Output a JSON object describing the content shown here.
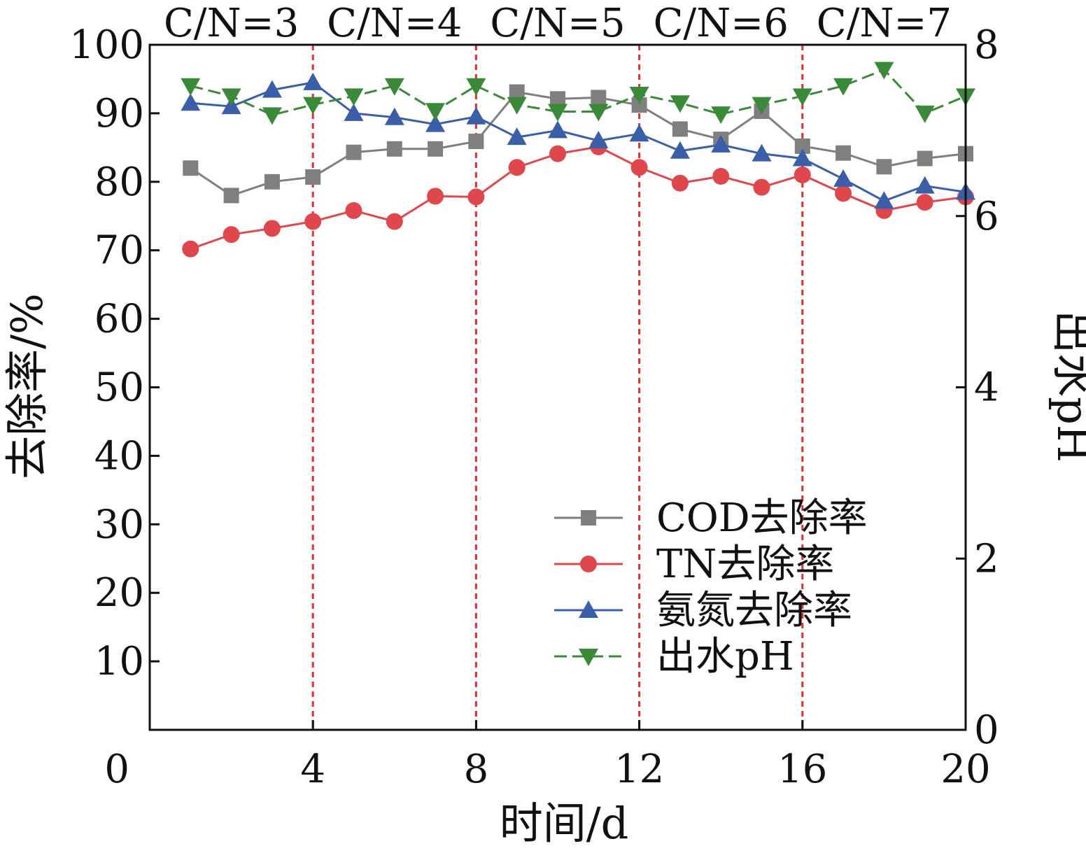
{
  "chart_data": {
    "type": "line",
    "xlabel": "时间/d",
    "ylabel": "去除率/%",
    "y2label": "出水pH",
    "xlim": [
      0,
      20
    ],
    "ylim": [
      0,
      100
    ],
    "y2lim": [
      0,
      8
    ],
    "xticks": [
      "0",
      "4",
      "8",
      "12",
      "16",
      "20"
    ],
    "yticks": [
      "10",
      "20",
      "30",
      "40",
      "50",
      "60",
      "70",
      "80",
      "90",
      "100"
    ],
    "y2ticks": [
      "0",
      "2",
      "4",
      "6",
      "8"
    ],
    "phase_boundaries": [
      4,
      8,
      12,
      16
    ],
    "phase_labels": [
      "C/N=3",
      "C/N=4",
      "C/N=5",
      "C/N=6",
      "C/N=7"
    ],
    "legend_position": "lower-right",
    "x": [
      1,
      2,
      3,
      4,
      5,
      6,
      7,
      8,
      9,
      10,
      11,
      12,
      13,
      14,
      15,
      16,
      17,
      18,
      19,
      20
    ],
    "series": [
      {
        "name": "COD去除率",
        "axis": "left",
        "color": "#7f7f7f",
        "marker": "square",
        "line_style": "solid",
        "values": [
          82.0,
          78.0,
          80.0,
          80.7,
          84.3,
          84.8,
          84.8,
          85.9,
          93.1,
          92.1,
          92.3,
          91.2,
          87.7,
          86.2,
          90.3,
          85.2,
          84.2,
          82.2,
          83.4,
          84.1
        ]
      },
      {
        "name": "TN去除率",
        "axis": "left",
        "color": "#e0474c",
        "marker": "circle",
        "line_style": "solid",
        "values": [
          70.2,
          72.3,
          73.2,
          74.2,
          75.8,
          74.2,
          77.9,
          77.8,
          82.1,
          84.1,
          85.1,
          82.1,
          79.8,
          80.8,
          79.2,
          81.0,
          78.3,
          75.8,
          77.0,
          77.8
        ]
      },
      {
        "name": "氨氮去除率",
        "axis": "left",
        "color": "#3a5ea8",
        "marker": "triangle-up",
        "line_style": "solid",
        "values": [
          91.5,
          91.0,
          93.4,
          94.5,
          90.0,
          89.4,
          88.4,
          89.5,
          86.5,
          87.5,
          86.0,
          87.0,
          84.5,
          85.4,
          84.1,
          83.4,
          80.4,
          77.2,
          79.4,
          78.5
        ]
      },
      {
        "name": "出水pH",
        "axis": "right",
        "color": "#3a8a3a",
        "marker": "triangle-down",
        "line_style": "dashed",
        "values": [
          7.52,
          7.4,
          7.18,
          7.3,
          7.4,
          7.52,
          7.23,
          7.52,
          7.3,
          7.22,
          7.22,
          7.42,
          7.32,
          7.19,
          7.3,
          7.4,
          7.52,
          7.71,
          7.2,
          7.4
        ]
      }
    ]
  }
}
